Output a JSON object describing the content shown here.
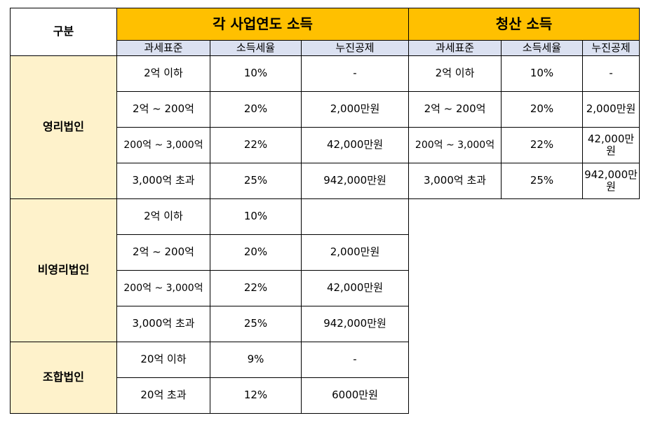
{
  "header": {
    "category_label": "구분",
    "group_income": "각 사업연도 소득",
    "group_liquidation": "청산 소득",
    "col_base": "과세표준",
    "col_rate": "소득세율",
    "col_deduction": "누진공제"
  },
  "for_profit": {
    "label": "영리법인",
    "rows": [
      {
        "base": "2억 이하",
        "rate": "10%",
        "deduction": "-",
        "liq_base": "2억 이하",
        "liq_rate": "10%",
        "liq_deduction": "-"
      },
      {
        "base": "2억 ~ 200억",
        "rate": "20%",
        "deduction": "2,000만원",
        "liq_base": "2억 ~ 200억",
        "liq_rate": "20%",
        "liq_deduction": "2,000만원"
      },
      {
        "base": "200억 ~ 3,000억",
        "rate": "22%",
        "deduction": "42,000만원",
        "liq_base": "200억 ~ 3,000억",
        "liq_rate": "22%",
        "liq_deduction": "42,000만원"
      },
      {
        "base": "3,000억 초과",
        "rate": "25%",
        "deduction": "942,000만원",
        "liq_base": "3,000억 초과",
        "liq_rate": "25%",
        "liq_deduction": "942,000만원"
      }
    ]
  },
  "non_profit": {
    "label": "비영리법인",
    "rows": [
      {
        "base": "2억 이하",
        "rate": "10%",
        "deduction": ""
      },
      {
        "base": "2억 ~ 200억",
        "rate": "20%",
        "deduction": "2,000만원"
      },
      {
        "base": "200억 ~ 3,000억",
        "rate": "22%",
        "deduction": "42,000만원"
      },
      {
        "base": "3,000억 초과",
        "rate": "25%",
        "deduction": "942,000만원"
      }
    ]
  },
  "cooperative": {
    "label": "조합법인",
    "rows": [
      {
        "base": "20억 이하",
        "rate": "9%",
        "deduction": "-"
      },
      {
        "base": "20억 초과",
        "rate": "12%",
        "deduction": "6000만원"
      }
    ]
  }
}
